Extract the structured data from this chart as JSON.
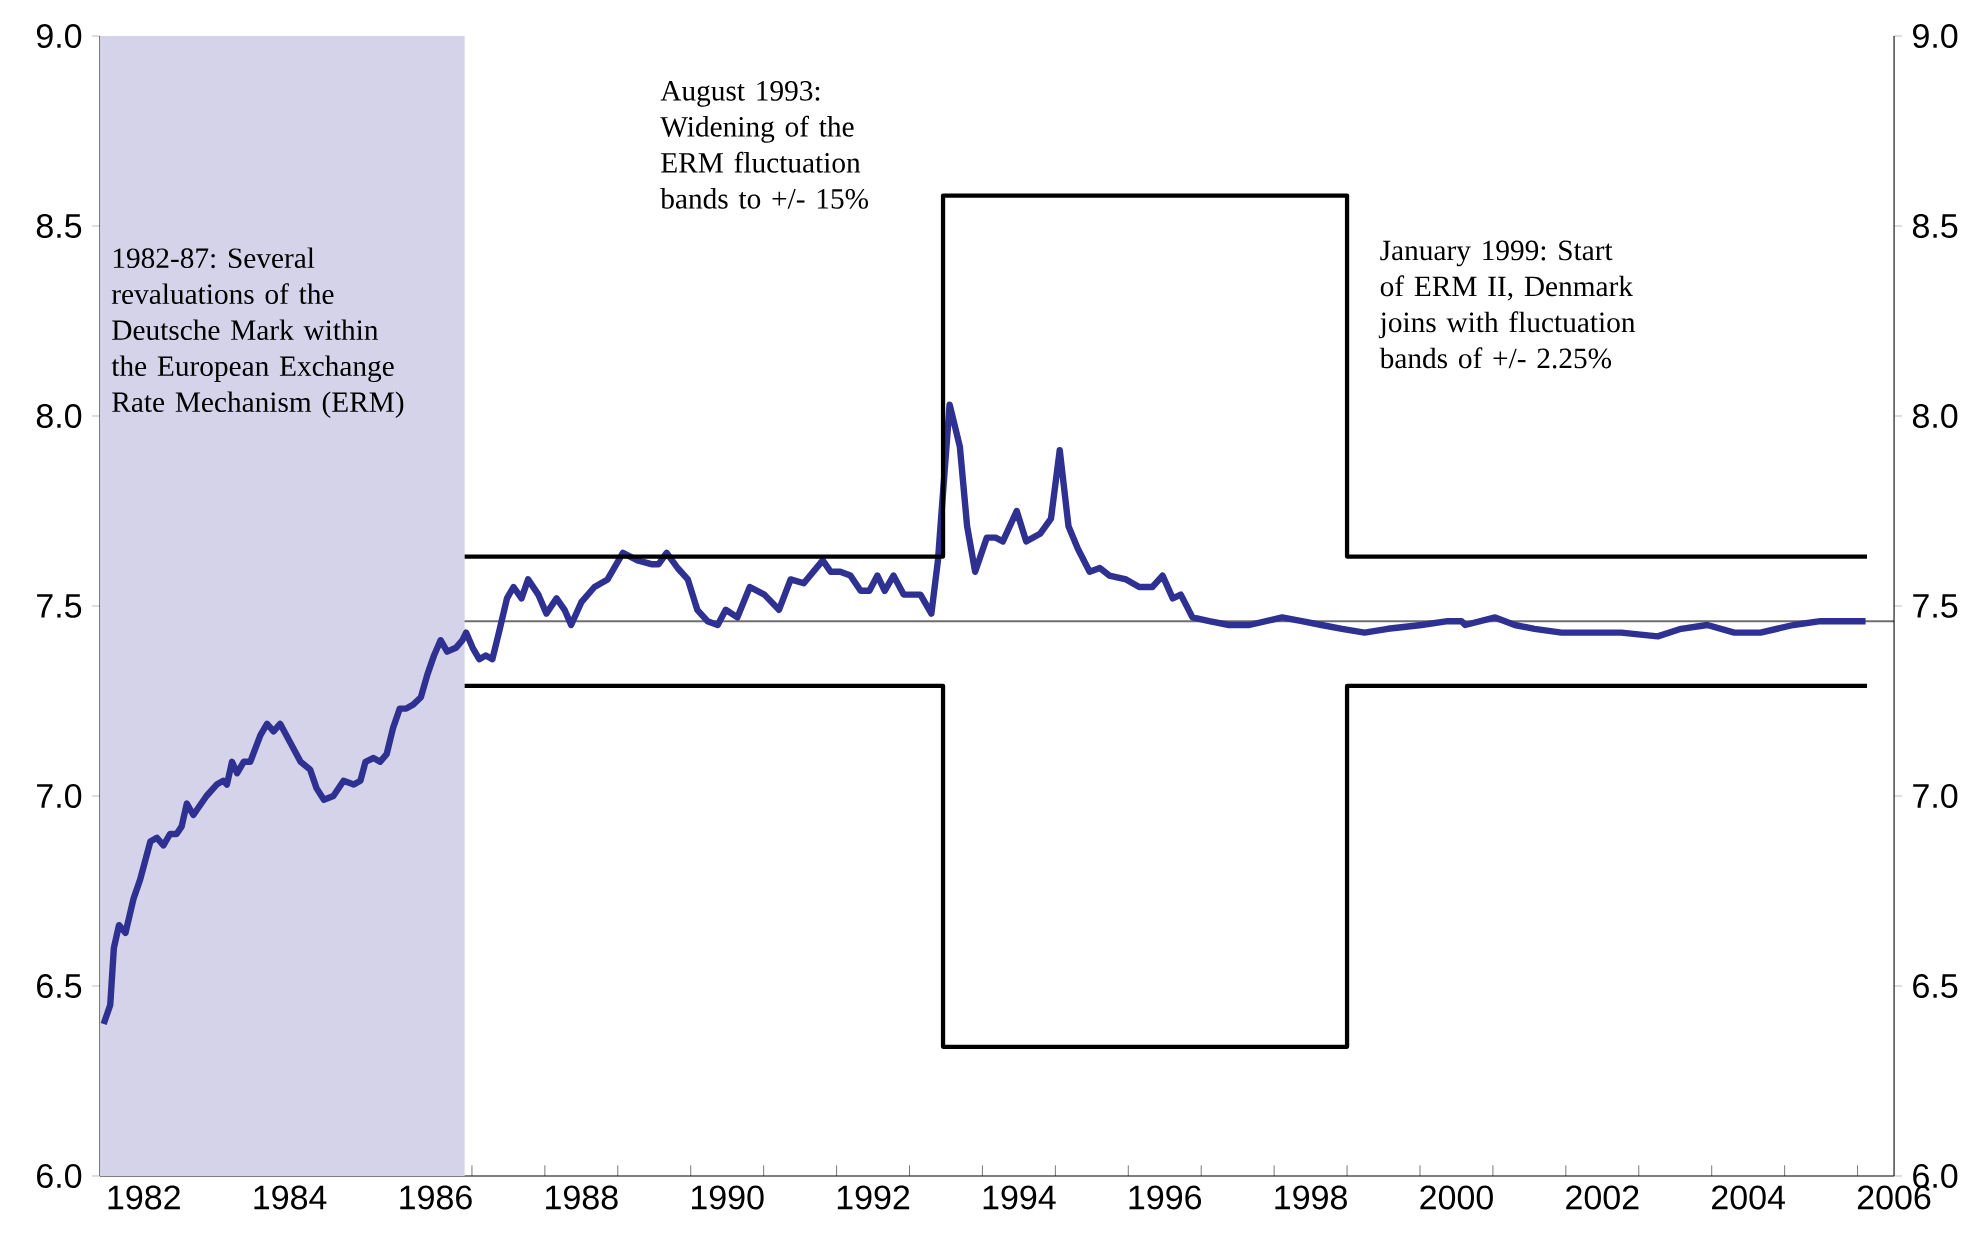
{
  "chart_data": {
    "type": "line",
    "annotations": [
      "1982-87: Several revaluations of the Deutsche Mark within the European Exchange Rate Mechanism (ERM)",
      "August 1993: Widening of the ERM fluctuation bands to +/- 15%",
      "January 1999: Start of ERM II, Denmark joins with fluctuation bands of +/- 2.25%"
    ],
    "series": [
      {
        "color": "#2e3192",
        "x": [
          1981.95,
          1982.04,
          1982.09,
          1982.16,
          1982.25,
          1982.36,
          1982.45,
          1982.59,
          1982.68,
          1982.77,
          1982.86,
          1982.95,
          1983.02,
          1983.09,
          1983.18,
          1983.36,
          1983.5,
          1983.59,
          1983.64,
          1983.71,
          1983.78,
          1983.87,
          1983.96,
          1984.1,
          1984.19,
          1984.28,
          1984.37,
          1984.51,
          1984.65,
          1984.78,
          1984.87,
          1984.97,
          1985.1,
          1985.24,
          1985.38,
          1985.47,
          1985.54,
          1985.65,
          1985.74,
          1985.83,
          1985.92,
          1986.01,
          1986.1,
          1986.19,
          1986.3,
          1986.39,
          1986.48,
          1986.57,
          1986.66,
          1986.78,
          1986.87,
          1986.92,
          1987.01,
          1987.1,
          1987.19,
          1987.28,
          1987.37,
          1987.48,
          1987.57,
          1987.68,
          1987.77,
          1987.91,
          1988.02,
          1988.16,
          1988.27,
          1988.36,
          1988.5,
          1988.68,
          1988.86,
          1989.07,
          1989.27,
          1989.46,
          1989.56,
          1989.67,
          1989.82,
          1989.96,
          1990.09,
          1990.23,
          1990.37,
          1990.48,
          1990.64,
          1990.81,
          1991.01,
          1991.21,
          1991.37,
          1991.55,
          1991.81,
          1991.92,
          1992.05,
          1992.19,
          1992.33,
          1992.45,
          1992.56,
          1992.66,
          1992.78,
          1992.92,
          1993.15,
          1993.3,
          1993.39,
          1993.55,
          1993.69,
          1993.79,
          1993.9,
          1994.06,
          1994.18,
          1994.28,
          1994.47,
          1994.6,
          1994.79,
          1994.94,
          1995.06,
          1995.18,
          1995.31,
          1995.47,
          1995.61,
          1995.74,
          1995.97,
          1996.15,
          1996.33,
          1996.47,
          1996.61,
          1996.72,
          1996.88,
          1997.11,
          1997.38,
          1997.66,
          1998.11,
          1998.38,
          1998.65,
          1998.93,
          1999.24,
          1999.56,
          2000.02,
          2000.38,
          2000.57,
          2000.62,
          2001.03,
          2001.3,
          2001.57,
          2001.94,
          2002.39,
          2002.76,
          2003.26,
          2003.58,
          2003.94,
          2004.31,
          2004.67,
          2005.12,
          2005.49,
          2005.95,
          2006.11
        ],
        "values": [
          6.4,
          6.45,
          6.6,
          6.66,
          6.64,
          6.73,
          6.78,
          6.88,
          6.89,
          6.87,
          6.9,
          6.9,
          6.92,
          6.98,
          6.95,
          7.0,
          7.03,
          7.04,
          7.03,
          7.09,
          7.06,
          7.09,
          7.09,
          7.16,
          7.19,
          7.17,
          7.19,
          7.14,
          7.09,
          7.07,
          7.02,
          6.99,
          7.0,
          7.04,
          7.03,
          7.04,
          7.09,
          7.1,
          7.09,
          7.11,
          7.18,
          7.23,
          7.23,
          7.24,
          7.26,
          7.32,
          7.37,
          7.41,
          7.38,
          7.39,
          7.41,
          7.43,
          7.39,
          7.36,
          7.37,
          7.36,
          7.43,
          7.52,
          7.55,
          7.52,
          7.57,
          7.53,
          7.48,
          7.52,
          7.49,
          7.45,
          7.51,
          7.55,
          7.57,
          7.64,
          7.62,
          7.61,
          7.61,
          7.64,
          7.6,
          7.57,
          7.49,
          7.46,
          7.45,
          7.49,
          7.47,
          7.55,
          7.53,
          7.49,
          7.57,
          7.56,
          7.62,
          7.59,
          7.59,
          7.58,
          7.54,
          7.54,
          7.58,
          7.54,
          7.58,
          7.53,
          7.53,
          7.48,
          7.62,
          8.03,
          7.92,
          7.71,
          7.59,
          7.68,
          7.68,
          7.67,
          7.75,
          7.67,
          7.69,
          7.73,
          7.91,
          7.71,
          7.65,
          7.59,
          7.6,
          7.58,
          7.57,
          7.55,
          7.55,
          7.58,
          7.52,
          7.53,
          7.47,
          7.46,
          7.45,
          7.45,
          7.47,
          7.46,
          7.45,
          7.44,
          7.43,
          7.44,
          7.45,
          7.46,
          7.46,
          7.45,
          7.47,
          7.45,
          7.44,
          7.43,
          7.43,
          7.43,
          7.42,
          7.44,
          7.45,
          7.43,
          7.43,
          7.45,
          7.46,
          7.46,
          7.46
        ]
      },
      {
        "color": "#000000",
        "x": [
          1986.9,
          1993.46,
          1993.46,
          1999.0,
          1999.0,
          2006.13
        ],
        "values": [
          7.63,
          7.63,
          8.58,
          8.58,
          7.63,
          7.63
        ]
      },
      {
        "color": "#000000",
        "x": [
          1986.9,
          1993.46,
          1993.46,
          1999.0,
          1999.0,
          2006.13
        ],
        "values": [
          7.29,
          7.29,
          6.34,
          6.34,
          7.29,
          7.29
        ]
      }
    ],
    "ref_lines": [
      {
        "axis": "y",
        "value": 7.46,
        "color": "#6e6e6e"
      }
    ],
    "bands": [
      {
        "axis": "x",
        "from": 1981.9,
        "to": 1986.9,
        "color": "#d5d3ea"
      }
    ],
    "xlim": [
      1981.9,
      2006.5
    ],
    "xticks": [
      {
        "value": 1982.5,
        "label": "1982"
      },
      {
        "value": 1984.5,
        "label": "1984"
      },
      {
        "value": 1986.5,
        "label": "1986"
      },
      {
        "value": 1988.5,
        "label": "1988"
      },
      {
        "value": 1990.5,
        "label": "1990"
      },
      {
        "value": 1992.5,
        "label": "1992"
      },
      {
        "value": 1994.5,
        "label": "1994"
      },
      {
        "value": 1996.5,
        "label": "1996"
      },
      {
        "value": 1998.5,
        "label": "1998"
      },
      {
        "value": 2000.5,
        "label": "2000"
      },
      {
        "value": 2002.5,
        "label": "2002"
      },
      {
        "value": 2004.5,
        "label": "2004"
      },
      {
        "value": 2006.5,
        "label": "2006"
      },
      {
        "value": 1982,
        "label": null
      },
      {
        "value": 1983,
        "label": null
      },
      {
        "value": 1984,
        "label": null
      },
      {
        "value": 1985,
        "label": null
      },
      {
        "value": 1986,
        "label": null
      },
      {
        "value": 1987,
        "label": null
      },
      {
        "value": 1988,
        "label": null
      },
      {
        "value": 1989,
        "label": null
      },
      {
        "value": 1990,
        "label": null
      },
      {
        "value": 1991,
        "label": null
      },
      {
        "value": 1992,
        "label": null
      },
      {
        "value": 1993,
        "label": null
      },
      {
        "value": 1994,
        "label": null
      },
      {
        "value": 1995,
        "label": null
      },
      {
        "value": 1996,
        "label": null
      },
      {
        "value": 1997,
        "label": null
      },
      {
        "value": 1998,
        "label": null
      },
      {
        "value": 1999,
        "label": null
      },
      {
        "value": 2000,
        "label": null
      },
      {
        "value": 2001,
        "label": null
      },
      {
        "value": 2002,
        "label": null
      },
      {
        "value": 2003,
        "label": null
      },
      {
        "value": 2004,
        "label": null
      },
      {
        "value": 2005,
        "label": null
      },
      {
        "value": 2006,
        "label": null
      }
    ],
    "ylim": [
      6.0,
      9.0
    ],
    "yticks": [
      {
        "value": 6.0,
        "label": "6.0"
      },
      {
        "value": 6.5,
        "label": "6.5"
      },
      {
        "value": 7.0,
        "label": "7.0"
      },
      {
        "value": 7.5,
        "label": "7.5"
      },
      {
        "value": 8.0,
        "label": "8.0"
      },
      {
        "value": 8.5,
        "label": "8.5"
      },
      {
        "value": 9.0,
        "label": "9.0"
      }
    ],
    "y2lim": [
      6.0,
      9.0
    ],
    "y2ticks": [
      {
        "value": 6.0,
        "label": "6.0"
      },
      {
        "value": 6.5,
        "label": "6.5"
      },
      {
        "value": 7.0,
        "label": "7.0"
      },
      {
        "value": 7.5,
        "label": "7.5"
      },
      {
        "value": 8.0,
        "label": "8.0"
      },
      {
        "value": 8.5,
        "label": "8.5"
      },
      {
        "value": 9.0,
        "label": "9.0"
      }
    ],
    "grid": false,
    "marker": "none",
    "line_style": "solid"
  }
}
